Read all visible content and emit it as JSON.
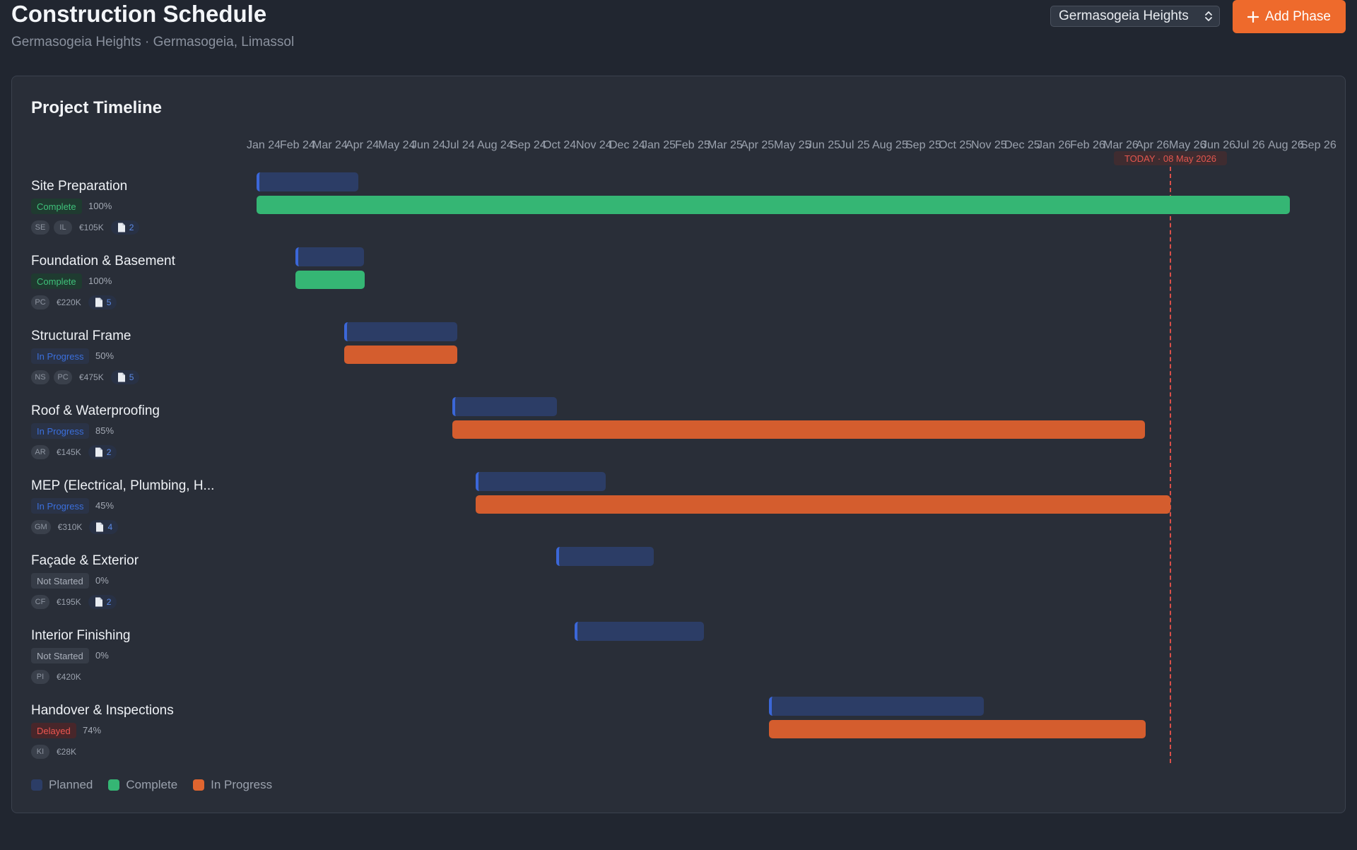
{
  "header": {
    "title": "Construction Schedule",
    "subtitle": "Germasogeia Heights · Germasogeia, Limassol",
    "project_select_value": "Germasogeia Heights",
    "add_button_label": "Add Phase"
  },
  "timeline": {
    "title": "Project Timeline",
    "months": [
      "Jan 24",
      "Feb 24",
      "Mar 24",
      "Apr 24",
      "May 24",
      "Jun 24",
      "Jul 24",
      "Aug 24",
      "Sep 24",
      "Oct 24",
      "Nov 24",
      "Dec 24",
      "Jan 25",
      "Feb 25",
      "Mar 25",
      "Apr 25",
      "May 25",
      "Jun 25",
      "Jul 25",
      "Aug 25",
      "Sep 25",
      "Oct 25",
      "Nov 25",
      "Dec 25",
      "Jan 26",
      "Feb 26",
      "Mar 26",
      "Apr 26",
      "May 26",
      "Jun 26",
      "Jul 26",
      "Aug 26",
      "Sep 26"
    ],
    "today_label": "TODAY · 08 May 2026",
    "phases": [
      {
        "name": "Site Preparation",
        "status": "Complete",
        "percent": "100%",
        "assignees": [
          "SE",
          "IL"
        ],
        "budget": "€105K",
        "docs": "2"
      },
      {
        "name": "Foundation & Basement",
        "status": "Complete",
        "percent": "100%",
        "assignees": [
          "PC"
        ],
        "budget": "€220K",
        "docs": "5"
      },
      {
        "name": "Structural Frame",
        "status": "In Progress",
        "percent": "50%",
        "assignees": [
          "NS",
          "PC"
        ],
        "budget": "€475K",
        "docs": "5"
      },
      {
        "name": "Roof & Waterproofing",
        "status": "In Progress",
        "percent": "85%",
        "assignees": [
          "AR"
        ],
        "budget": "€145K",
        "docs": "2"
      },
      {
        "name": "MEP (Electrical, Plumbing, H...",
        "status": "In Progress",
        "percent": "45%",
        "assignees": [
          "GM"
        ],
        "budget": "€310K",
        "docs": "4"
      },
      {
        "name": "Façade & Exterior",
        "status": "Not Started",
        "percent": "0%",
        "assignees": [
          "CF"
        ],
        "budget": "€195K",
        "docs": "2"
      },
      {
        "name": "Interior Finishing",
        "status": "Not Started",
        "percent": "0%",
        "assignees": [
          "PI"
        ],
        "budget": "€420K",
        "docs": ""
      },
      {
        "name": "Handover & Inspections",
        "status": "Delayed",
        "percent": "74%",
        "assignees": [
          "KI"
        ],
        "budget": "€28K",
        "docs": ""
      }
    ],
    "legend": [
      {
        "label": "Planned",
        "color": "#2c3d66"
      },
      {
        "label": "Complete",
        "color": "#35b674"
      },
      {
        "label": "In Progress",
        "color": "#e0652f"
      }
    ]
  },
  "colors": {
    "accent": "#ee6a2c",
    "planned": "#2c3d66",
    "complete": "#35b674",
    "in_progress": "#d45d2e",
    "today": "#d9504a"
  }
}
